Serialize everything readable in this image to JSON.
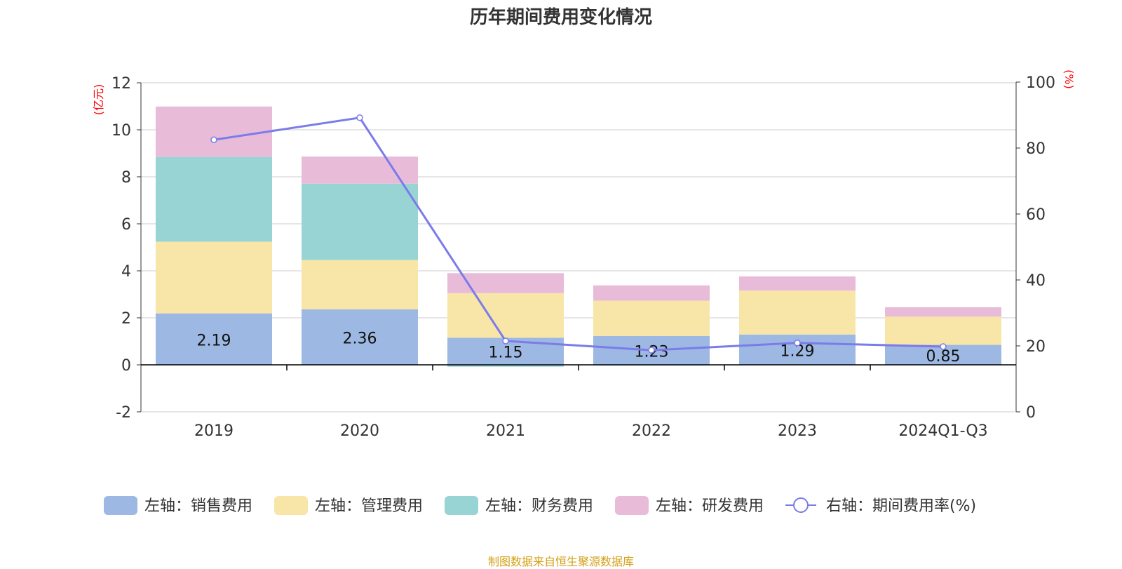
{
  "chart_data": {
    "type": "bar",
    "title": "历年期间费用变化情况",
    "source": "制图数据来自恒生聚源数据库",
    "categories": [
      "2019",
      "2020",
      "2021",
      "2022",
      "2023",
      "2024Q1-Q3"
    ],
    "left_axis": {
      "unit": "(亿元)",
      "ticks": [
        "12",
        "10",
        "8",
        "6",
        "4",
        "2",
        "0",
        "-2"
      ],
      "ylim": [
        -2,
        12
      ],
      "color": "#ff0000"
    },
    "right_axis": {
      "unit": "(%)",
      "ticks": [
        "100",
        "80",
        "60",
        "40",
        "20",
        "0"
      ],
      "ylim": [
        0,
        100
      ],
      "color": "#ff0000"
    },
    "grid": true,
    "legend_position": "bottom",
    "series": [
      {
        "name": "左轴：销售费用",
        "axis": "left",
        "color": "#9db8e2",
        "values": [
          2.19,
          2.36,
          1.15,
          1.23,
          1.29,
          0.85
        ],
        "labels": [
          "2.19",
          "2.36",
          "1.15",
          "1.23",
          "1.29",
          "0.85"
        ]
      },
      {
        "name": "左轴：管理费用",
        "axis": "left",
        "color": "#f8e6a8",
        "values": [
          3.05,
          2.1,
          1.9,
          1.5,
          1.87,
          1.2
        ]
      },
      {
        "name": "左轴：财务费用",
        "axis": "left",
        "color": "#98d4d4",
        "values": [
          3.6,
          3.25,
          -0.08,
          -0.02,
          0.0,
          0.0
        ]
      },
      {
        "name": "左轴：研发费用",
        "axis": "left",
        "color": "#e8bbd9",
        "values": [
          2.15,
          1.15,
          0.85,
          0.65,
          0.6,
          0.4
        ]
      },
      {
        "name": "右轴：期间费用率(%)",
        "axis": "right",
        "type": "line",
        "color": "#7b7bea",
        "values": [
          82.5,
          89.2,
          21.5,
          18.7,
          20.9,
          19.8
        ]
      }
    ]
  }
}
